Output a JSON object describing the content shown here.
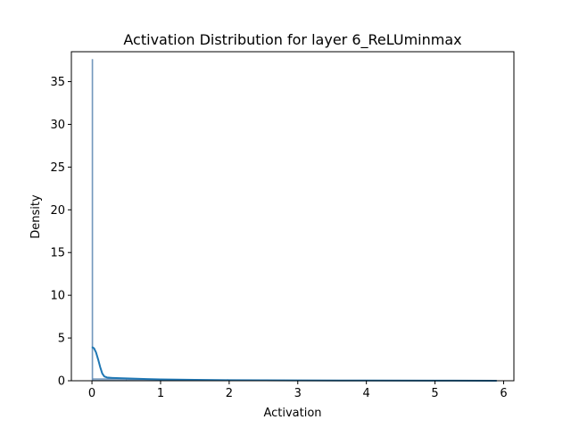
{
  "chart_data": {
    "type": "histogram",
    "title": "Activation Distribution for layer 6_ReLUminmax",
    "xlabel": "Activation",
    "ylabel": "Density",
    "xlim": [
      -0.3,
      6.15
    ],
    "ylim": [
      0,
      38.5
    ],
    "xticks": [
      0,
      1,
      2,
      3,
      4,
      5,
      6
    ],
    "xtick_labels": [
      "0",
      "1",
      "2",
      "3",
      "4",
      "5",
      "6"
    ],
    "yticks": [
      0,
      5,
      10,
      15,
      20,
      25,
      30,
      35
    ],
    "ytick_labels": [
      "0",
      "5",
      "10",
      "15",
      "20",
      "25",
      "30",
      "35"
    ],
    "grid": false,
    "histogram": {
      "bins": [
        {
          "x0": 0.0,
          "x1": 0.012,
          "density": 37.6
        },
        {
          "x0": 0.012,
          "x1": 0.5,
          "density": 0.25
        },
        {
          "x0": 0.5,
          "x1": 1.0,
          "density": 0.15
        },
        {
          "x0": 1.0,
          "x1": 2.0,
          "density": 0.1
        },
        {
          "x0": 2.0,
          "x1": 3.0,
          "density": 0.06
        },
        {
          "x0": 3.0,
          "x1": 4.0,
          "density": 0.04
        },
        {
          "x0": 4.0,
          "x1": 5.0,
          "density": 0.02
        },
        {
          "x0": 5.0,
          "x1": 5.9,
          "density": 0.01
        }
      ],
      "color": "#5f88b3"
    },
    "kde": {
      "x": [
        0.0,
        0.03,
        0.06,
        0.09,
        0.12,
        0.15,
        0.18,
        0.22,
        0.3,
        0.4,
        0.6,
        0.8,
        1.0,
        1.5,
        2.0,
        3.0,
        4.0,
        5.0,
        5.9
      ],
      "y": [
        3.95,
        3.8,
        3.3,
        2.5,
        1.6,
        0.85,
        0.5,
        0.38,
        0.33,
        0.3,
        0.25,
        0.2,
        0.15,
        0.1,
        0.07,
        0.04,
        0.02,
        0.01,
        0.005
      ],
      "color": "#1f77b4"
    }
  }
}
